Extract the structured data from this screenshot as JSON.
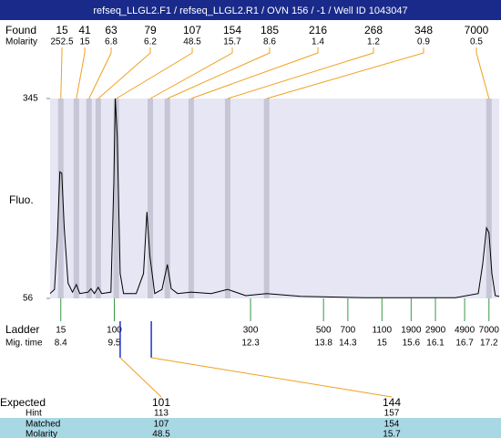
{
  "chart_data": {
    "type": "electropherogram",
    "title": "refseq_LLGL2.F1 / refseq_LLGL2.R1 / OVN 156 / -1 / Well ID 1043047",
    "found_label": "Found",
    "molarity_label": "Molarity",
    "y_label": "Fluo.",
    "ylim": [
      56,
      345
    ],
    "yticks": [
      56,
      345
    ],
    "xlim": [
      8.18,
      17.41
    ],
    "found": {
      "sizes": [
        15,
        41,
        63,
        79,
        107,
        154,
        185,
        216,
        268,
        348,
        7000
      ],
      "molarity": [
        252.5,
        15,
        6.8,
        6.2,
        48.5,
        15.7,
        8.6,
        1.4,
        1.2,
        0.9,
        0.5
      ],
      "times": [
        8.4,
        8.72,
        8.98,
        9.17,
        9.54,
        10.24,
        10.59,
        11.08,
        11.83,
        12.63,
        17.2
      ]
    },
    "ladder": {
      "label": "Ladder",
      "time_label": "Mig. time",
      "sizes": [
        15,
        100,
        300,
        500,
        700,
        1100,
        1900,
        2900,
        4900,
        7000
      ],
      "times": [
        8.4,
        9.5,
        12.3,
        13.8,
        14.3,
        15,
        15.6,
        16.1,
        16.7,
        17.2
      ]
    },
    "expected": {
      "row_labels": [
        "Expected",
        "Hint",
        "Matched",
        "Molarity"
      ],
      "columns": [
        {
          "expected": 101,
          "hint": 113,
          "matched": 107,
          "molarity": 48.5,
          "time": 9.62
        },
        {
          "expected": 144,
          "hint": 157,
          "matched": 154,
          "molarity": 15.7,
          "time": 10.26
        }
      ]
    },
    "trace": {
      "x": [
        8.18,
        8.27,
        8.33,
        8.38,
        8.42,
        8.47,
        8.55,
        8.64,
        8.72,
        8.79,
        8.96,
        9.02,
        9.09,
        9.17,
        9.24,
        9.43,
        9.49,
        9.52,
        9.56,
        9.62,
        9.69,
        9.95,
        10.1,
        10.17,
        10.23,
        10.33,
        10.48,
        10.59,
        10.67,
        10.8,
        11.08,
        11.49,
        11.83,
        12.2,
        12.63,
        13.33,
        14.64,
        16.51,
        16.98,
        17.07,
        17.15,
        17.2,
        17.26,
        17.33,
        17.41
      ],
      "values": [
        63,
        69,
        144,
        239,
        237,
        158,
        78,
        65,
        76,
        63,
        65,
        70,
        63,
        72,
        63,
        65,
        224,
        345,
        290,
        92,
        63,
        63,
        92,
        181,
        118,
        63,
        69,
        105,
        70,
        63,
        65,
        63,
        69,
        60,
        63,
        59,
        57,
        57,
        63,
        105,
        158,
        151,
        92,
        60,
        59
      ]
    }
  }
}
